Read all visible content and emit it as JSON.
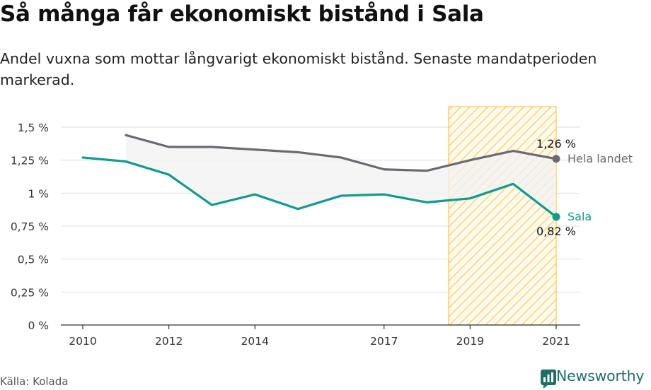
{
  "header": {
    "title": "Så många får ekonomiskt bistånd i Sala",
    "subtitle": "Andel vuxna som mottar långvarigt ekonomiskt bistånd. Senaste mandatperioden markerad."
  },
  "footer": {
    "source": "Källa: Kolada",
    "brand": "Newsworthy"
  },
  "colors": {
    "national": "#6b6a72",
    "local": "#0e9c8e",
    "highlight": "#f5c463",
    "grid": "#dddddd",
    "band": "#f2f2f2",
    "brand": "#1f6f68"
  },
  "chart_data": {
    "type": "line",
    "title": "Så många får ekonomiskt bistånd i Sala",
    "subtitle": "Andel vuxna som mottar långvarigt ekonomiskt bistånd. Senaste mandatperioden markerad.",
    "xlabel": "",
    "ylabel": "",
    "x_ticks": [
      "2010",
      "2012",
      "2014",
      "2017",
      "2019",
      "2021"
    ],
    "y_ticks": [
      "0 %",
      "0,25 %",
      "0,5 %",
      "0,75 %",
      "1 %",
      "1,25 %",
      "1,5 %"
    ],
    "ylim": [
      0,
      1.5
    ],
    "xlim": [
      2010,
      2021
    ],
    "grid": true,
    "highlight_period": [
      2018.5,
      2021
    ],
    "series": [
      {
        "name": "Hela landet",
        "x": [
          2011,
          2012,
          2013,
          2014,
          2015,
          2016,
          2017,
          2018,
          2019,
          2020,
          2021
        ],
        "values": [
          1.44,
          1.35,
          1.35,
          1.33,
          1.31,
          1.27,
          1.18,
          1.17,
          1.25,
          1.32,
          1.26
        ],
        "end_label": "1,26 %"
      },
      {
        "name": "Sala",
        "x": [
          2010,
          2011,
          2012,
          2013,
          2014,
          2015,
          2016,
          2017,
          2018,
          2019,
          2020,
          2021
        ],
        "values": [
          1.27,
          1.24,
          1.14,
          0.91,
          0.99,
          0.88,
          0.98,
          0.99,
          0.93,
          0.96,
          1.07,
          0.82
        ],
        "end_label": "0,82 %"
      }
    ]
  }
}
